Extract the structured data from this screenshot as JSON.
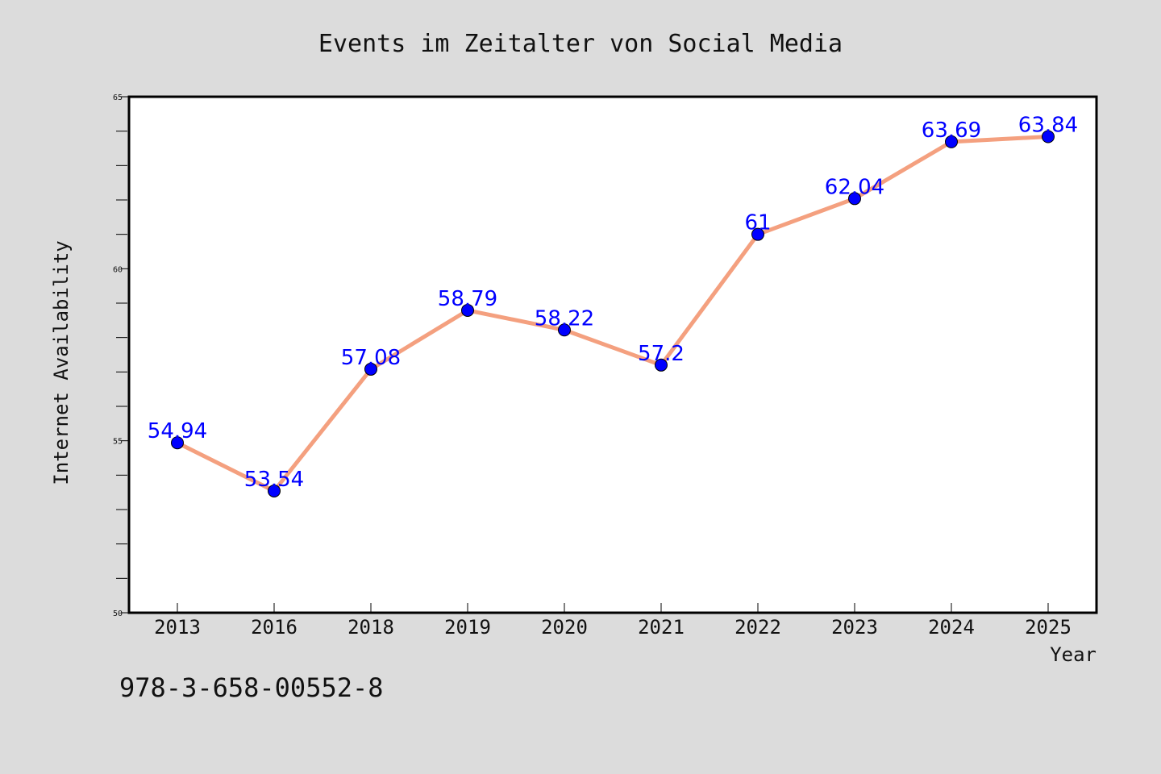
{
  "chart_data": {
    "type": "line",
    "title": "Events im Zeitalter von Social Media",
    "xlabel": "Year",
    "ylabel": "Internet Availability",
    "categories": [
      "2013",
      "2016",
      "2018",
      "2019",
      "2020",
      "2021",
      "2022",
      "2023",
      "2024",
      "2025"
    ],
    "series": [
      {
        "values": [
          54.94,
          53.54,
          57.08,
          58.79,
          58.22,
          57.2,
          61,
          62.04,
          63.69,
          63.84
        ],
        "data_labels": [
          "54.94",
          "53.54",
          "57.08",
          "58.79",
          "58.22",
          "57.2",
          "61",
          "62.04",
          "63.69",
          "63.84"
        ]
      }
    ],
    "ylim": [
      50,
      65
    ],
    "y_ticks": [
      "50",
      "55",
      "60",
      "65"
    ],
    "grid": false,
    "line_color": "#f4a07f",
    "marker_color": "#0000ff",
    "label_color": "#0000ff"
  },
  "footer": {
    "isbn": "978-3-658-00552-8"
  }
}
